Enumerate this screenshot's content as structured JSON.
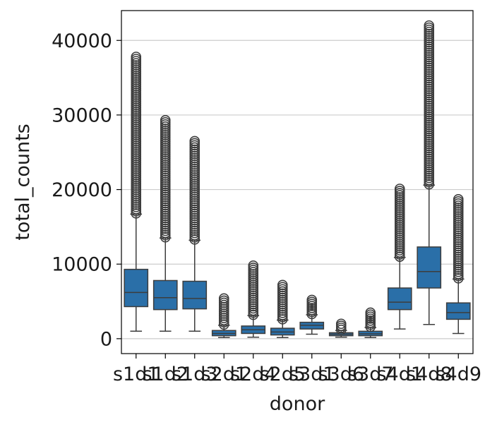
{
  "chart_data": {
    "type": "box",
    "title": "",
    "xlabel": "donor",
    "ylabel": "total_counts",
    "ylim": [
      -2000,
      44000
    ],
    "yticks": [
      0,
      10000,
      20000,
      30000,
      40000
    ],
    "yticklabels": [
      "0",
      "10000",
      "20000",
      "30000",
      "40000"
    ],
    "grid": "horizontal",
    "legend": "none",
    "colors": {
      "box": "#2a6fa8",
      "line": "#3d3d3d",
      "grid": "#cccccc",
      "axis": "#000000"
    },
    "categories": [
      "s1d1",
      "s1d2",
      "s1d3",
      "s2d1",
      "s2d4",
      "s2d5",
      "s3d1",
      "s3d6",
      "s3d7",
      "s4d1",
      "s4d8",
      "s4d9"
    ],
    "boxes": [
      {
        "category": "s1d1",
        "q1": 4300,
        "median": 6200,
        "q3": 9300,
        "whisker_low": 1000,
        "whisker_high": 16700,
        "outliers_min": 16800,
        "outliers_max": 37800
      },
      {
        "category": "s1d2",
        "q1": 3900,
        "median": 5500,
        "q3": 7800,
        "whisker_low": 1000,
        "whisker_high": 13500,
        "outliers_min": 13600,
        "outliers_max": 29300
      },
      {
        "category": "s1d3",
        "q1": 4000,
        "median": 5400,
        "q3": 7700,
        "whisker_low": 1000,
        "whisker_high": 13200,
        "outliers_min": 13300,
        "outliers_max": 26500
      },
      {
        "category": "s2d1",
        "q1": 400,
        "median": 700,
        "q3": 1100,
        "whisker_low": 150,
        "whisker_high": 1800,
        "outliers_min": 1900,
        "outliers_max": 5400
      },
      {
        "category": "s2d4",
        "q1": 700,
        "median": 1200,
        "q3": 1700,
        "whisker_low": 200,
        "whisker_high": 3100,
        "outliers_min": 3200,
        "outliers_max": 9800
      },
      {
        "category": "s2d5",
        "q1": 500,
        "median": 900,
        "q3": 1400,
        "whisker_low": 150,
        "whisker_high": 2500,
        "outliers_min": 2600,
        "outliers_max": 7200
      },
      {
        "category": "s3d1",
        "q1": 1300,
        "median": 1800,
        "q3": 2200,
        "whisker_low": 600,
        "whisker_high": 3200,
        "outliers_min": 3300,
        "outliers_max": 5200
      },
      {
        "category": "s3d6",
        "q1": 400,
        "median": 600,
        "q3": 800,
        "whisker_low": 200,
        "whisker_high": 1100,
        "outliers_min": 1200,
        "outliers_max": 2000
      },
      {
        "category": "s3d7",
        "q1": 400,
        "median": 650,
        "q3": 1000,
        "whisker_low": 150,
        "whisker_high": 1500,
        "outliers_min": 1600,
        "outliers_max": 3500
      },
      {
        "category": "s4d1",
        "q1": 3900,
        "median": 4900,
        "q3": 6800,
        "whisker_low": 1300,
        "whisker_high": 10900,
        "outliers_min": 11000,
        "outliers_max": 20100
      },
      {
        "category": "s4d8",
        "q1": 6800,
        "median": 9000,
        "q3": 12300,
        "whisker_low": 1900,
        "whisker_high": 20600,
        "outliers_min": 20700,
        "outliers_max": 42000
      },
      {
        "category": "s4d9",
        "q1": 2600,
        "median": 3500,
        "q3": 4800,
        "whisker_low": 700,
        "whisker_high": 8000,
        "outliers_min": 8100,
        "outliers_max": 18700
      }
    ]
  }
}
